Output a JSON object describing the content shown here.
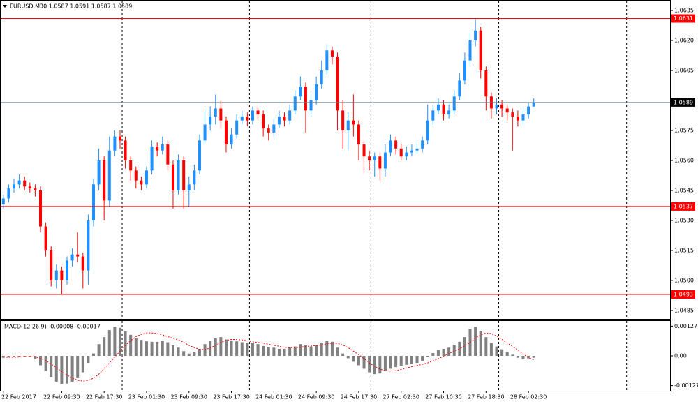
{
  "chart_data": [
    {
      "type": "candlestick",
      "title": "EURUSD,M30  1.0587 1.0591 1.0587 1.0589",
      "up_color": "#1e90ff",
      "down_color": "#ff0000",
      "xlim": [
        -0.5,
        125.7
      ],
      "xgrid": [
        22.4,
        46.4,
        69.3,
        93.4,
        117.5
      ],
      "ylim": [
        1.04808,
        1.06399
      ],
      "yticks": [
        1.0635,
        {
          "value": 1.062,
          "label": "1.0620"
        },
        1.0605,
        {
          "value": 1.059,
          "label": "1.0590"
        },
        1.0575,
        {
          "value": 1.056,
          "label": "1.0560"
        },
        1.0545,
        {
          "value": 1.053,
          "label": "1.0530"
        },
        1.0515,
        {
          "value": 1.05,
          "label": "1.0500"
        },
        1.0485
      ],
      "levels": [
        {
          "value": 1.0631,
          "color": "#ff0000"
        },
        {
          "value": 1.0589,
          "color": "#708090"
        },
        {
          "value": 1.0537,
          "color": "#ff0000"
        },
        {
          "value": 1.0493,
          "color": "#ff0000"
        }
      ],
      "open": [
        1.0538,
        1.0541,
        1.0546,
        1.0548,
        1.055,
        1.0547,
        1.0546,
        1.0545,
        1.0527,
        1.0515,
        1.05,
        1.0505,
        1.05,
        1.051,
        1.0513,
        1.0512,
        1.0505,
        1.053,
        1.0548,
        1.056,
        1.054,
        1.0565,
        1.0572,
        1.057,
        1.056,
        1.0555,
        1.055,
        1.0548,
        1.0555,
        1.0567,
        1.0565,
        1.0568,
        1.0558,
        1.0545,
        1.056,
        1.0545,
        1.0548,
        1.0555,
        1.057,
        1.0578,
        1.0582,
        1.0586,
        1.058,
        1.0568,
        1.0573,
        1.058,
        1.0582,
        1.058,
        1.0585,
        1.0583,
        1.0576,
        1.0574,
        1.0578,
        1.0582,
        1.058,
        1.0585,
        1.0592,
        1.0597,
        1.0585,
        1.059,
        1.0598,
        1.0605,
        1.0615,
        1.0612,
        1.0585,
        1.0575,
        1.058,
        1.0578,
        1.0568,
        1.0562,
        1.056,
        1.0562,
        1.0556,
        1.0564,
        1.057,
        1.0566,
        1.0562,
        1.0564,
        1.0565,
        1.0566,
        1.057,
        1.058,
        1.0585,
        1.0588,
        1.0583,
        1.0585,
        1.0592,
        1.06,
        1.061,
        1.062,
        1.0625,
        1.0605,
        1.0592,
        1.0586,
        1.0588,
        1.0586,
        1.0584,
        1.0582,
        1.058,
        1.0583,
        1.0587
      ],
      "high": [
        1.0543,
        1.0548,
        1.0551,
        1.0553,
        1.0552,
        1.0549,
        1.0548,
        1.0547,
        1.0529,
        1.0517,
        1.0508,
        1.0507,
        1.0512,
        1.0516,
        1.0524,
        1.0514,
        1.0533,
        1.0551,
        1.0566,
        1.0562,
        1.0572,
        1.0575,
        1.0575,
        1.0572,
        1.0562,
        1.0557,
        1.0552,
        1.0557,
        1.057,
        1.0569,
        1.0572,
        1.057,
        1.056,
        1.0563,
        1.0562,
        1.0552,
        1.0558,
        1.0573,
        1.0585,
        1.0587,
        1.0593,
        1.059,
        1.0582,
        1.0576,
        1.0583,
        1.0585,
        1.0584,
        1.0587,
        1.0587,
        1.0585,
        1.0578,
        1.0581,
        1.0585,
        1.0584,
        1.0588,
        1.0595,
        1.0602,
        1.0599,
        1.0593,
        1.0602,
        1.061,
        1.0618,
        1.0617,
        1.0614,
        1.059,
        1.0584,
        1.0593,
        1.058,
        1.057,
        1.0565,
        1.0564,
        1.0564,
        1.0568,
        1.0573,
        1.0572,
        1.0568,
        1.0567,
        1.0568,
        1.0569,
        1.0572,
        1.0588,
        1.0588,
        1.0591,
        1.059,
        1.0588,
        1.0595,
        1.0604,
        1.0614,
        1.0624,
        1.0631,
        1.0627,
        1.0607,
        1.0594,
        1.0591,
        1.059,
        1.0588,
        1.0586,
        1.0585,
        1.0586,
        1.0589,
        1.0591
      ],
      "low": [
        1.0536,
        1.0539,
        1.0544,
        1.0546,
        1.0545,
        1.0544,
        1.0542,
        1.0524,
        1.0512,
        1.0497,
        1.0496,
        1.0493,
        1.0498,
        1.0507,
        1.0509,
        1.0496,
        1.0498,
        1.0527,
        1.0545,
        1.053,
        1.0537,
        1.0562,
        1.0566,
        1.0556,
        1.055,
        1.0546,
        1.0545,
        1.0546,
        1.0553,
        1.0562,
        1.0563,
        1.0555,
        1.0536,
        1.0543,
        1.0536,
        1.0537,
        1.0545,
        1.0553,
        1.0568,
        1.0575,
        1.0578,
        1.0576,
        1.0564,
        1.0566,
        1.0571,
        1.0578,
        1.0577,
        1.0578,
        1.058,
        1.0572,
        1.057,
        1.0572,
        1.0576,
        1.0577,
        1.0578,
        1.0583,
        1.059,
        1.0574,
        1.0582,
        1.0588,
        1.0596,
        1.0603,
        1.0608,
        1.0575,
        1.0566,
        1.0565,
        1.0572,
        1.056,
        1.0554,
        1.0555,
        1.0552,
        1.055,
        1.0552,
        1.0562,
        1.0563,
        1.056,
        1.056,
        1.0562,
        1.0563,
        1.0564,
        1.0568,
        1.0578,
        1.0583,
        1.058,
        1.0581,
        1.0583,
        1.059,
        1.0598,
        1.0607,
        1.0617,
        1.0601,
        1.0585,
        1.0581,
        1.0583,
        1.0582,
        1.058,
        1.0565,
        1.0577,
        1.0578,
        1.0581,
        1.0587
      ],
      "close": [
        1.0541,
        1.0546,
        1.0548,
        1.055,
        1.0547,
        1.0546,
        1.0545,
        1.0527,
        1.0515,
        1.05,
        1.0505,
        1.05,
        1.051,
        1.0513,
        1.0512,
        1.0505,
        1.053,
        1.0548,
        1.056,
        1.054,
        1.0565,
        1.0572,
        1.057,
        1.056,
        1.0555,
        1.055,
        1.0548,
        1.0555,
        1.0567,
        1.0565,
        1.0568,
        1.0558,
        1.0545,
        1.056,
        1.0545,
        1.0548,
        1.0555,
        1.057,
        1.0578,
        1.0582,
        1.0586,
        1.058,
        1.0568,
        1.0573,
        1.058,
        1.0582,
        1.058,
        1.0585,
        1.0583,
        1.0576,
        1.0574,
        1.0578,
        1.0582,
        1.058,
        1.0585,
        1.0592,
        1.0597,
        1.0585,
        1.059,
        1.0598,
        1.0605,
        1.0615,
        1.0612,
        1.0585,
        1.0575,
        1.058,
        1.0578,
        1.0568,
        1.0562,
        1.056,
        1.0562,
        1.0556,
        1.0564,
        1.057,
        1.0566,
        1.0562,
        1.0564,
        1.0565,
        1.0566,
        1.057,
        1.058,
        1.0585,
        1.0588,
        1.0583,
        1.0585,
        1.0592,
        1.06,
        1.061,
        1.062,
        1.0625,
        1.0605,
        1.0592,
        1.0586,
        1.0588,
        1.0586,
        1.0584,
        1.0582,
        1.058,
        1.0583,
        1.0587,
        1.0589
      ]
    },
    {
      "type": "macd",
      "title": "MACD(12,26,9) -0.00008 -0.00017",
      "histogram_color": "#808080",
      "signal_color": "#ff0000",
      "xlim": [
        -0.5,
        125.7
      ],
      "xticks": [
        {
          "value": 0,
          "label": "22 Feb 2017"
        },
        {
          "value": 11,
          "label": "22 Feb 09:30"
        },
        {
          "value": 19,
          "label": "22 Feb 17:30"
        },
        {
          "value": 27,
          "label": "23 Feb 01:30"
        },
        {
          "value": 35,
          "label": "23 Feb 09:30"
        },
        {
          "value": 43,
          "label": "23 Feb 17:30"
        },
        {
          "value": 51,
          "label": "24 Feb 01:30"
        },
        {
          "value": 59,
          "label": "24 Feb 09:30"
        },
        {
          "value": 67,
          "label": "24 Feb 17:30"
        },
        {
          "value": 75,
          "label": "27 Feb 02:30"
        },
        {
          "value": 83,
          "label": "27 Feb 10:30"
        },
        {
          "value": 91,
          "label": "27 Feb 18:30"
        },
        {
          "value": 99,
          "label": "28 Feb 02:30"
        }
      ],
      "ylim": [
        -0.00149,
        0.00149
      ],
      "yticks": [
        0.00127,
        {
          "value": 0,
          "label": "0.00"
        },
        -0.00127
      ],
      "histogram": [
        -8e-05,
        -7e-05,
        -5e-05,
        -4e-05,
        -3e-05,
        -5e-05,
        -0.00015,
        -0.0004,
        -0.00065,
        -0.0009,
        -0.0011,
        -0.0012,
        -0.00118,
        -0.0011,
        -0.00095,
        -0.0007,
        -0.0003,
        0.0001,
        0.0005,
        0.0008,
        0.0011,
        0.00125,
        0.0012,
        0.00105,
        0.0009,
        0.00075,
        0.00068,
        0.00062,
        0.0006,
        0.0006,
        0.00065,
        0.00058,
        0.00045,
        0.00035,
        0.0002,
        0.0001,
        0.00015,
        0.0003,
        0.0005,
        0.00065,
        0.00075,
        0.0008,
        0.0007,
        0.00065,
        0.00062,
        0.00058,
        0.00055,
        0.00055,
        0.0005,
        0.00042,
        0.00038,
        0.00035,
        0.0003,
        0.0003,
        0.00035,
        0.0004,
        0.0005,
        0.00045,
        0.0004,
        0.00045,
        0.00055,
        0.00065,
        0.0006,
        0.00035,
        0.0001,
        -0.0001,
        -0.00025,
        -0.0004,
        -0.00055,
        -0.0007,
        -0.00078,
        -0.00075,
        -0.00065,
        -0.00055,
        -0.00048,
        -0.00042,
        -0.00038,
        -0.00035,
        -0.0003,
        -0.00022,
        -5e-05,
        0.00012,
        0.00025,
        0.0003,
        0.00035,
        0.00045,
        0.0006,
        0.0008,
        0.00115,
        0.00125,
        0.00105,
        0.0008,
        0.00055,
        0.0004,
        0.00028,
        0.00018,
        5e-05,
        -8e-05,
        -0.00015,
        -0.00011,
        -8e-05
      ],
      "signal": [
        -5e-05,
        -6e-05,
        -6e-05,
        -5e-05,
        -4e-05,
        -4e-05,
        -5e-05,
        -0.0001,
        -0.0002,
        -0.00035,
        -0.0005,
        -0.00067,
        -0.00082,
        -0.00095,
        -0.00104,
        -0.00108,
        -0.00105,
        -0.00095,
        -0.00078,
        -0.00055,
        -0.0003,
        -5e-05,
        0.0002,
        0.00045,
        0.00065,
        0.00082,
        0.00092,
        0.00098,
        0.00098,
        0.00095,
        0.0009,
        0.00082,
        0.00075,
        0.00068,
        0.00058,
        0.00045,
        0.00035,
        0.00028,
        0.00027,
        0.00033,
        0.00045,
        0.00057,
        0.00066,
        0.0007,
        0.0007,
        0.00068,
        0.00064,
        0.0006,
        0.00057,
        0.00054,
        0.0005,
        0.00045,
        0.00041,
        0.00037,
        0.00035,
        0.00035,
        0.00037,
        0.0004,
        0.00042,
        0.00044,
        0.00047,
        0.00051,
        0.00054,
        0.00053,
        0.00046,
        0.00035,
        0.0002,
        5e-05,
        -0.00012,
        -0.0003,
        -0.00045,
        -0.00057,
        -0.00063,
        -0.00065,
        -0.00063,
        -0.00058,
        -0.00052,
        -0.00046,
        -0.00041,
        -0.00036,
        -0.0003,
        -0.00022,
        -0.00012,
        -2e-05,
        0.0001,
        0.0002,
        0.0003,
        0.00042,
        0.00057,
        0.00075,
        0.0009,
        0.00098,
        0.00095,
        0.00085,
        0.0007,
        0.00055,
        0.0004,
        0.00025,
        8e-05,
        -7e-05,
        -0.00017
      ]
    }
  ]
}
